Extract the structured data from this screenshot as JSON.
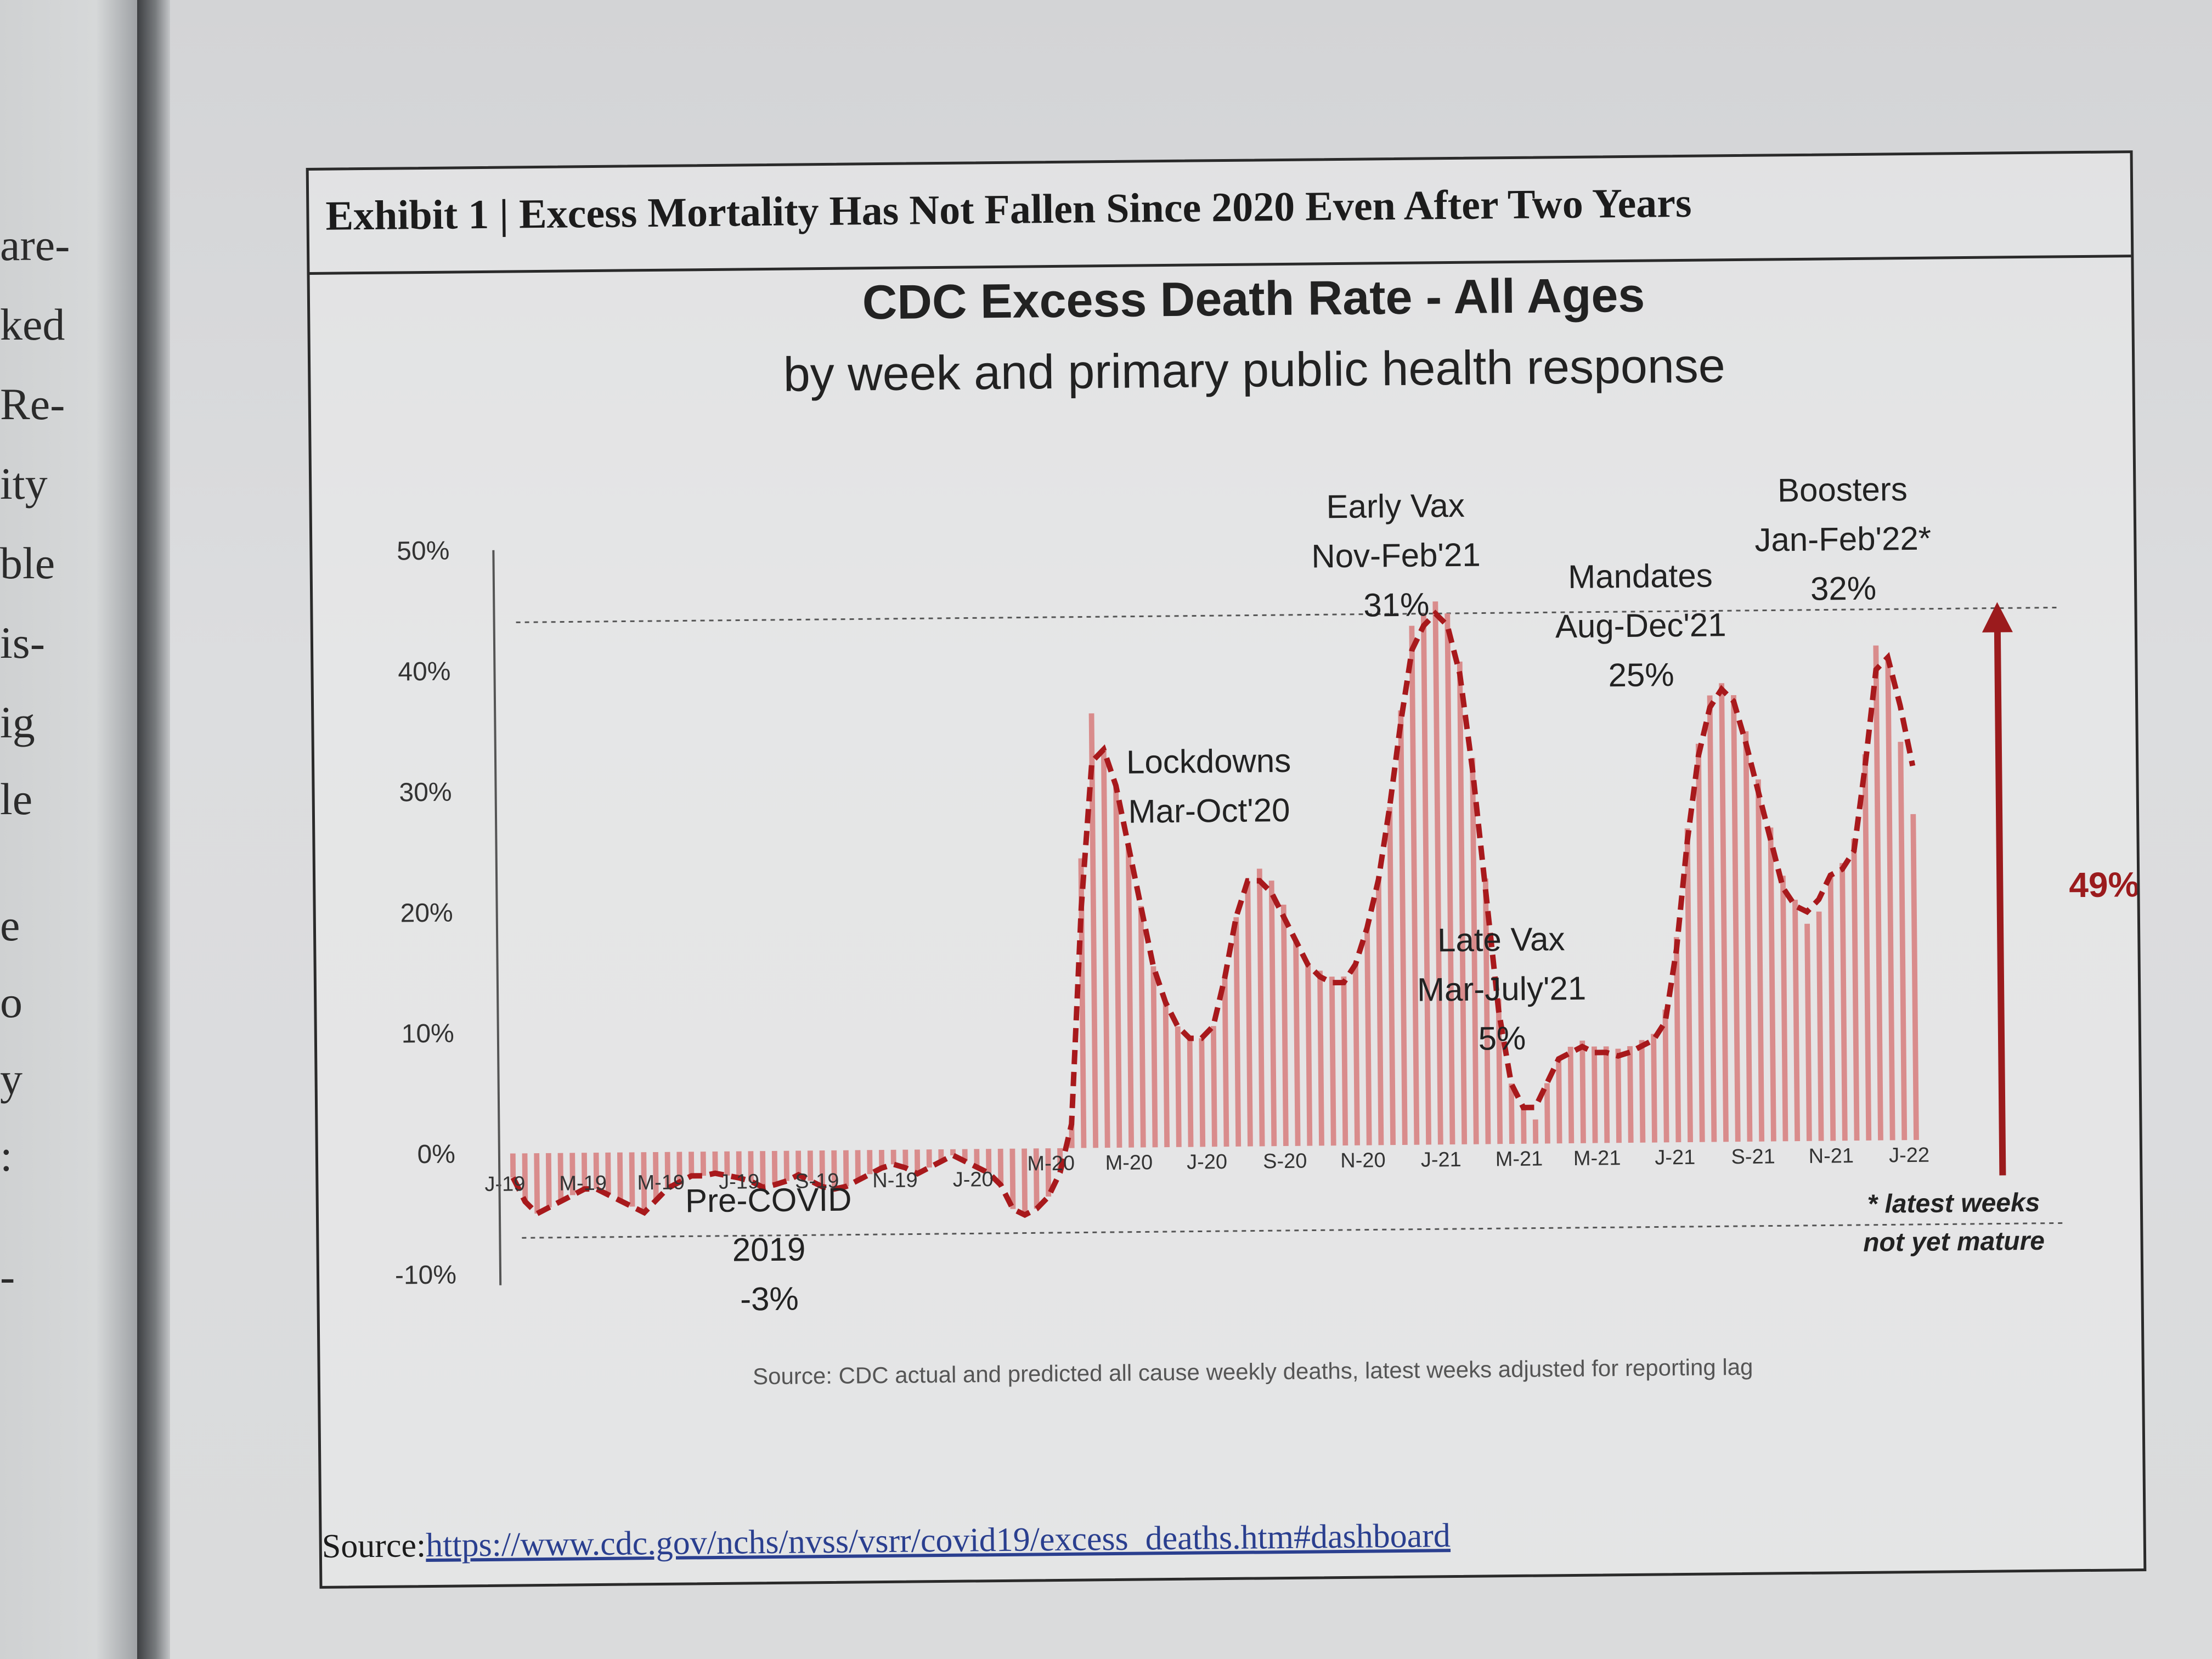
{
  "left_page": {
    "fragments": [
      "are-",
      "ked",
      "Re-",
      "ity",
      "ble",
      "is-",
      "ig",
      "le",
      "e",
      "o",
      "y",
      ":",
      "-"
    ]
  },
  "exhibit": {
    "title": "Exhibit 1 | Excess Mortality Has Not Fallen Since 2020 Even After Two Years",
    "source_label": "Source:",
    "source_link": "https://www.cdc.gov/nchs/nvss/vsrr/covid19/excess_deaths.htm#dashboard"
  },
  "colors": {
    "bar": "#d98c8c",
    "line": "#a8191c",
    "arrow": "#9b1b1d",
    "text": "#222222",
    "axis": "#555555"
  },
  "chart_data": {
    "type": "bar",
    "title": "CDC Excess Death Rate - All Ages",
    "subtitle": "by week and primary public health response",
    "xlabel": "",
    "ylabel": "",
    "ylim": [
      -0.1,
      0.5
    ],
    "yticks": [
      "50%",
      "40%",
      "30%",
      "20%",
      "10%",
      "0%",
      "-10%"
    ],
    "ytick_values": [
      0.5,
      0.4,
      0.3,
      0.2,
      0.1,
      0.0,
      -0.1
    ],
    "x_tick_labels": [
      "J-19",
      "M-19",
      "M-19",
      "J-19",
      "S-19",
      "N-19",
      "J-20",
      "M-20",
      "M-20",
      "J-20",
      "S-20",
      "N-20",
      "J-21",
      "M-21",
      "M-21",
      "J-21",
      "S-21",
      "N-21",
      "J-22"
    ],
    "series": [
      {
        "kind": "bars",
        "values": [
          -0.02,
          -0.04,
          -0.05,
          -0.045,
          -0.04,
          -0.035,
          -0.03,
          -0.03,
          -0.035,
          -0.04,
          -0.045,
          -0.05,
          -0.04,
          -0.03,
          -0.025,
          -0.02,
          -0.02,
          -0.018,
          -0.02,
          -0.022,
          -0.025,
          -0.03,
          -0.028,
          -0.025,
          -0.02,
          -0.025,
          -0.03,
          -0.032,
          -0.03,
          -0.025,
          -0.02,
          -0.015,
          -0.012,
          -0.015,
          -0.02,
          -0.015,
          -0.01,
          -0.005,
          -0.01,
          -0.015,
          -0.02,
          -0.03,
          -0.05,
          -0.055,
          -0.05,
          -0.04,
          -0.02,
          0.02,
          0.24,
          0.36,
          0.33,
          0.3,
          0.25,
          0.2,
          0.15,
          0.12,
          0.1,
          0.09,
          0.09,
          0.1,
          0.14,
          0.19,
          0.22,
          0.23,
          0.22,
          0.2,
          0.17,
          0.15,
          0.145,
          0.14,
          0.14,
          0.15,
          0.18,
          0.22,
          0.28,
          0.36,
          0.43,
          0.44,
          0.45,
          0.44,
          0.4,
          0.32,
          0.22,
          0.12,
          0.05,
          0.03,
          0.02,
          0.05,
          0.07,
          0.08,
          0.085,
          0.08,
          0.08,
          0.078,
          0.08,
          0.085,
          0.09,
          0.11,
          0.17,
          0.26,
          0.33,
          0.37,
          0.38,
          0.37,
          0.34,
          0.3,
          0.26,
          0.22,
          0.2,
          0.18,
          0.19,
          0.22,
          0.23,
          0.25,
          0.32,
          0.41,
          0.4,
          0.33,
          0.27
        ]
      },
      {
        "kind": "dashed-line",
        "values": [
          -0.02,
          -0.04,
          -0.05,
          -0.045,
          -0.04,
          -0.035,
          -0.03,
          -0.03,
          -0.035,
          -0.04,
          -0.045,
          -0.05,
          -0.04,
          -0.03,
          -0.025,
          -0.02,
          -0.02,
          -0.018,
          -0.02,
          -0.022,
          -0.025,
          -0.03,
          -0.028,
          -0.025,
          -0.02,
          -0.025,
          -0.03,
          -0.032,
          -0.03,
          -0.025,
          -0.02,
          -0.015,
          -0.012,
          -0.015,
          -0.02,
          -0.015,
          -0.01,
          -0.005,
          -0.01,
          -0.015,
          -0.02,
          -0.03,
          -0.05,
          -0.055,
          -0.05,
          -0.04,
          -0.02,
          0.02,
          0.2,
          0.32,
          0.33,
          0.3,
          0.25,
          0.2,
          0.15,
          0.12,
          0.1,
          0.09,
          0.09,
          0.1,
          0.14,
          0.19,
          0.22,
          0.22,
          0.21,
          0.19,
          0.17,
          0.15,
          0.14,
          0.135,
          0.135,
          0.15,
          0.18,
          0.22,
          0.28,
          0.35,
          0.41,
          0.43,
          0.44,
          0.43,
          0.39,
          0.31,
          0.21,
          0.11,
          0.05,
          0.03,
          0.03,
          0.05,
          0.07,
          0.075,
          0.08,
          0.075,
          0.075,
          0.072,
          0.075,
          0.08,
          0.085,
          0.1,
          0.16,
          0.25,
          0.32,
          0.36,
          0.375,
          0.365,
          0.33,
          0.29,
          0.25,
          0.21,
          0.195,
          0.19,
          0.2,
          0.22,
          0.225,
          0.24,
          0.31,
          0.39,
          0.4,
          0.36,
          0.31
        ]
      }
    ],
    "reference_lines": [
      0.44,
      -0.07
    ],
    "annotations": [
      {
        "lines": [
          "Pre-COVID",
          "2019",
          "-3%"
        ]
      },
      {
        "lines": [
          "Lockdowns",
          "Mar-Oct'20"
        ]
      },
      {
        "lines": [
          "Early Vax",
          "Nov-Feb'21",
          "31%"
        ]
      },
      {
        "lines": [
          "Late Vax",
          "Mar-July'21",
          "5%"
        ]
      },
      {
        "lines": [
          "Mandates",
          "Aug-Dec'21",
          "25%"
        ]
      },
      {
        "lines": [
          "Boosters",
          "Jan-Feb'22*",
          "32%"
        ]
      }
    ],
    "arrow_label": "49%",
    "footnote": [
      "* latest weeks",
      "not yet mature"
    ],
    "source_note": "Source: CDC actual and predicted all cause weekly deaths, latest weeks adjusted for reporting lag"
  }
}
